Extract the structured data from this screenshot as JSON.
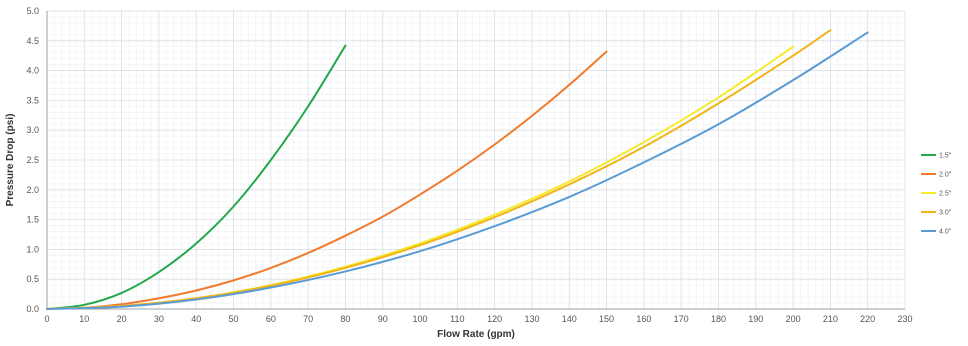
{
  "chart_data": {
    "type": "line",
    "title": "",
    "xlabel": "Flow Rate (gpm)",
    "ylabel": "Pressure Drop (psi)",
    "xlim": [
      0,
      230
    ],
    "ylim": [
      0,
      5.0
    ],
    "x_ticks": [
      "0",
      "10",
      "20",
      "30",
      "40",
      "50",
      "60",
      "70",
      "80",
      "90",
      "100",
      "110",
      "120",
      "130",
      "140",
      "150",
      "160",
      "170",
      "180",
      "190",
      "200",
      "210",
      "220",
      "230"
    ],
    "y_ticks": [
      "0.0",
      "0.5",
      "1.0",
      "1.5",
      "2.0",
      "2.5",
      "3.0",
      "3.5",
      "4.0",
      "4.5",
      "5.0"
    ],
    "grid": true,
    "legend_position": "right",
    "series": [
      {
        "name": "1.5\"",
        "color": "#22a84a",
        "x": [
          0,
          10,
          20,
          30,
          40,
          50,
          60,
          70,
          80
        ],
        "y": [
          0,
          0.07,
          0.27,
          0.62,
          1.1,
          1.72,
          2.5,
          3.4,
          4.42
        ]
      },
      {
        "name": "2.0\"",
        "color": "#f07a2e",
        "x": [
          0,
          10,
          20,
          30,
          40,
          50,
          60,
          70,
          80,
          90,
          100,
          110,
          120,
          130,
          140,
          150
        ],
        "y": [
          0,
          0.02,
          0.08,
          0.18,
          0.31,
          0.48,
          0.69,
          0.94,
          1.23,
          1.55,
          1.92,
          2.32,
          2.76,
          3.24,
          3.76,
          4.32
        ]
      },
      {
        "name": "2.5\"",
        "color": "#f5ea2c",
        "x": [
          0,
          20,
          40,
          60,
          80,
          100,
          120,
          140,
          160,
          180,
          200
        ],
        "y": [
          0,
          0.05,
          0.18,
          0.4,
          0.71,
          1.1,
          1.58,
          2.14,
          2.8,
          3.55,
          4.4
        ]
      },
      {
        "name": "3.0\"",
        "color": "#f4b419",
        "x": [
          0,
          20,
          40,
          60,
          80,
          100,
          120,
          140,
          160,
          180,
          200,
          210
        ],
        "y": [
          0,
          0.05,
          0.18,
          0.39,
          0.69,
          1.07,
          1.54,
          2.09,
          2.72,
          3.45,
          4.25,
          4.68
        ]
      },
      {
        "name": "4.0\"",
        "color": "#5b9bd5",
        "x": [
          0,
          20,
          40,
          60,
          80,
          100,
          120,
          140,
          160,
          180,
          200,
          220
        ],
        "y": [
          0,
          0.04,
          0.16,
          0.36,
          0.63,
          0.97,
          1.39,
          1.88,
          2.46,
          3.1,
          3.84,
          4.64
        ]
      }
    ]
  }
}
